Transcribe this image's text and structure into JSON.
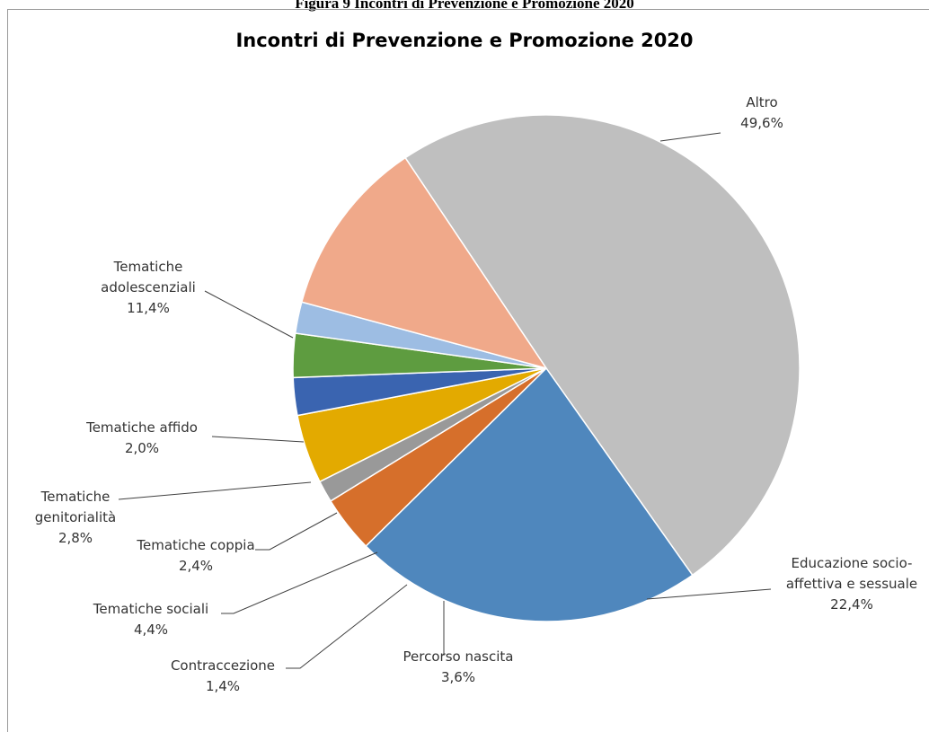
{
  "caption": "Figura 9 Incontri di Prevenzione e Promozione 2020",
  "chart_data": {
    "type": "pie",
    "title": "Incontri di Prevenzione e Promozione 2020",
    "slices": [
      {
        "name": "Altro",
        "value": 49.6,
        "label": "49,6%",
        "color": "#bfbfbf",
        "label_lines": [
          "Altro"
        ]
      },
      {
        "name": "Educazione socio-affettiva e sessuale",
        "value": 22.4,
        "label": "22,4%",
        "color": "#4f87bd",
        "label_lines": [
          "Educazione socio-",
          "affettiva e sessuale"
        ]
      },
      {
        "name": "Percorso nascita",
        "value": 3.6,
        "label": "3,6%",
        "color": "#d66f2b",
        "label_lines": [
          "Percorso nascita"
        ]
      },
      {
        "name": "Contraccezione",
        "value": 1.4,
        "label": "1,4%",
        "color": "#999999",
        "label_lines": [
          "Contraccezione"
        ]
      },
      {
        "name": "Tematiche sociali",
        "value": 4.4,
        "label": "4,4%",
        "color": "#e3aa00",
        "label_lines": [
          "Tematiche sociali"
        ]
      },
      {
        "name": "Tematiche coppia",
        "value": 2.4,
        "label": "2,4%",
        "color": "#3a64b0",
        "label_lines": [
          "Tematiche coppia"
        ]
      },
      {
        "name": "Tematiche genitorialità",
        "value": 2.8,
        "label": "2,8%",
        "color": "#5e9c40",
        "label_lines": [
          "Tematiche",
          "genitorialità"
        ]
      },
      {
        "name": "Tematiche affido",
        "value": 2.0,
        "label": "2,0%",
        "color": "#9dbde3",
        "label_lines": [
          "Tematiche affido"
        ]
      },
      {
        "name": "Tematiche adolescenziali",
        "value": 11.4,
        "label": "11,4%",
        "color": "#f0a98a",
        "label_lines": [
          "Tematiche",
          "adolescenziali"
        ]
      }
    ]
  }
}
